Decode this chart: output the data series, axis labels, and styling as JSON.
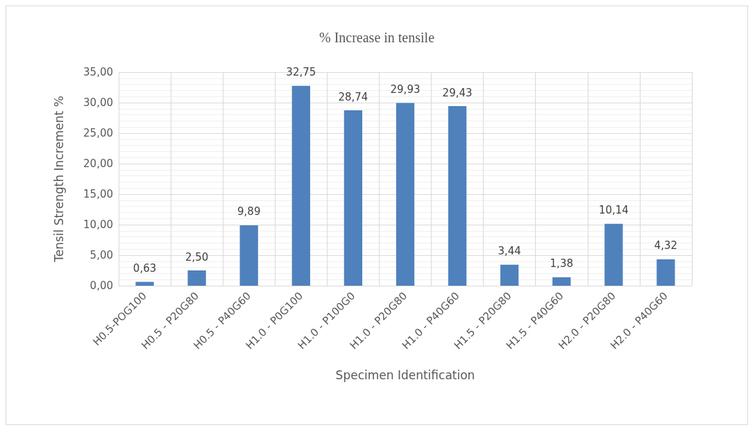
{
  "chart_data": {
    "type": "bar",
    "title": "% Increase in tensile",
    "xlabel": "Specimen Identification",
    "ylabel": "Tensil Strength Increment %",
    "categories": [
      "H0.5-POG100",
      "H0.5 - P20G80",
      "H0.5 - P40G60",
      "H1.0 - P0G100",
      "H1.0 - P100G0",
      "H1.0 - P20G80",
      "H1.0 - P40G60",
      "H1.5 - P20G80",
      "H1.5 - P40G60",
      "H2.0 - P20G80",
      "H2.0 - P40G60"
    ],
    "values": [
      0.63,
      2.5,
      9.89,
      32.75,
      28.74,
      29.93,
      29.43,
      3.44,
      1.38,
      10.14,
      4.32
    ],
    "value_labels": [
      "0,63",
      "2,50",
      "9,89",
      "32,75",
      "28,74",
      "29,93",
      "29,43",
      "3,44",
      "1,38",
      "10,14",
      "4,32"
    ],
    "color": "#4f81bd",
    "ylim": [
      0,
      35
    ],
    "yticks": [
      {
        "value": 0,
        "label": "0,00"
      },
      {
        "value": 5,
        "label": "5,00"
      },
      {
        "value": 10,
        "label": "10,00"
      },
      {
        "value": 15,
        "label": "15,00"
      },
      {
        "value": 20,
        "label": "20,00"
      },
      {
        "value": 25,
        "label": "25,00"
      },
      {
        "value": 30,
        "label": "30,00"
      },
      {
        "value": 35,
        "label": "35,00"
      }
    ],
    "grid": true
  }
}
